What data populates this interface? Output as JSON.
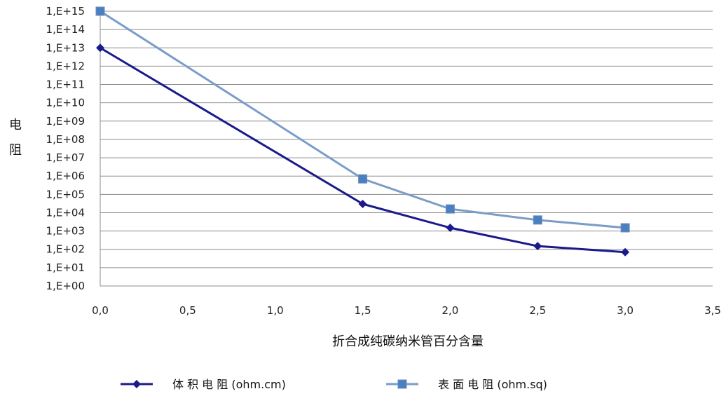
{
  "chart_data": {
    "type": "line",
    "xlabel": "折合成纯碳纳米管百分含量",
    "ylabel": "电 阻",
    "xlim": [
      0,
      3.5
    ],
    "ylim_log10": [
      0,
      15
    ],
    "yscale": "log",
    "grid": "horizontal",
    "legend_position": "bottom",
    "x_ticks": [
      "0,0",
      "0,5",
      "1,0",
      "1,5",
      "2,0",
      "2,5",
      "3,0",
      "3,5"
    ],
    "y_ticks": [
      "1,E+00",
      "1,E+01",
      "1,E+02",
      "1,E+03",
      "1,E+04",
      "1,E+05",
      "1,E+06",
      "1,E+07",
      "1,E+08",
      "1,E+09",
      "1,E+10",
      "1,E+11",
      "1,E+12",
      "1,E+13",
      "1,E+14",
      "1,E+15"
    ],
    "series": [
      {
        "name": "体 积 电 阻  (ohm.cm)",
        "color": "#1a1a8c",
        "marker": "diamond",
        "x": [
          0.0,
          1.5,
          2.0,
          2.5,
          3.0
        ],
        "y": [
          10000000000000.0,
          30000.0,
          1500.0,
          150.0,
          70.0
        ]
      },
      {
        "name": "表 面 电 阻  (ohm.sq)",
        "color": "#7a9cc8",
        "marker_color": "#4a7fc0",
        "marker": "square",
        "x": [
          0.0,
          1.5,
          2.0,
          2.5,
          3.0
        ],
        "y": [
          1000000000000000.0,
          700000.0,
          16000.0,
          4000.0,
          1500.0
        ]
      }
    ]
  }
}
